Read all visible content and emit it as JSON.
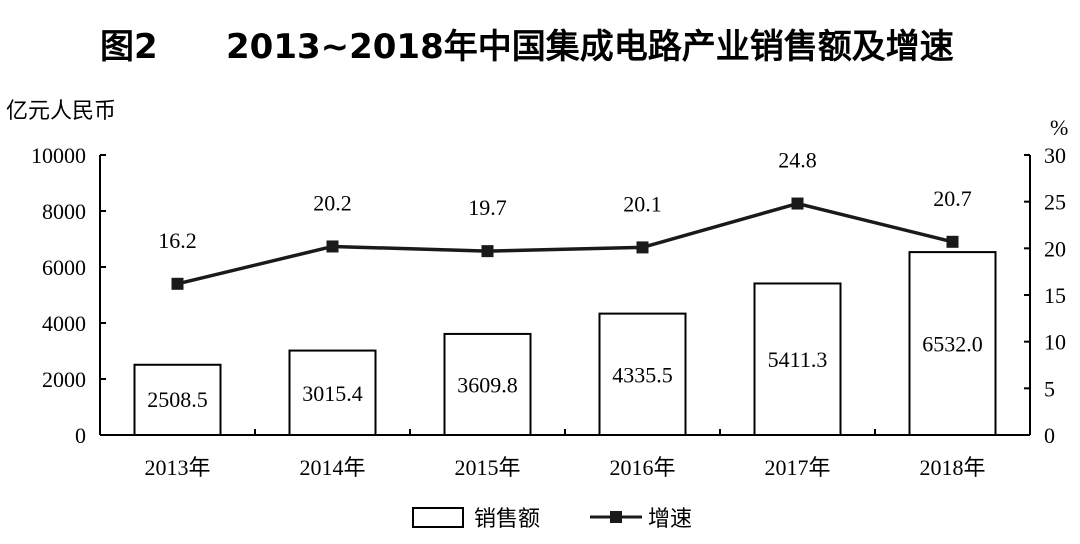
{
  "chart_data": {
    "type": "bar+line",
    "figure_label": "图2",
    "title": "2013~2018年中国集成电路产业销售额及增速",
    "categories": [
      "2013年",
      "2014年",
      "2015年",
      "2016年",
      "2017年",
      "2018年"
    ],
    "series": [
      {
        "name": "销售额",
        "type": "bar",
        "axis": "left",
        "values": [
          2508.5,
          3015.4,
          3609.8,
          4335.5,
          5411.3,
          6532.0
        ],
        "labels": [
          "2508.5",
          "3015.4",
          "3609.8",
          "4335.5",
          "5411.3",
          "6532.0"
        ]
      },
      {
        "name": "增速",
        "type": "line",
        "axis": "right",
        "values": [
          16.2,
          20.2,
          19.7,
          20.1,
          24.8,
          20.7
        ],
        "labels": [
          "16.2",
          "20.2",
          "19.7",
          "20.1",
          "24.8",
          "20.7"
        ]
      }
    ],
    "ylabel_left": "亿元人民币",
    "ylabel_right": "%",
    "ylim_left": [
      0,
      10000
    ],
    "ylim_right": [
      0,
      30
    ],
    "yticks_left": [
      "0",
      "2000",
      "4000",
      "6000",
      "8000",
      "10000"
    ],
    "yticks_right": [
      "0",
      "5",
      "10",
      "15",
      "20",
      "25",
      "30"
    ],
    "grid": false,
    "legend_position": "bottom",
    "colors": {
      "bar_fill": "#ffffff",
      "bar_stroke": "#000000",
      "line": "#1a1a1a"
    }
  }
}
